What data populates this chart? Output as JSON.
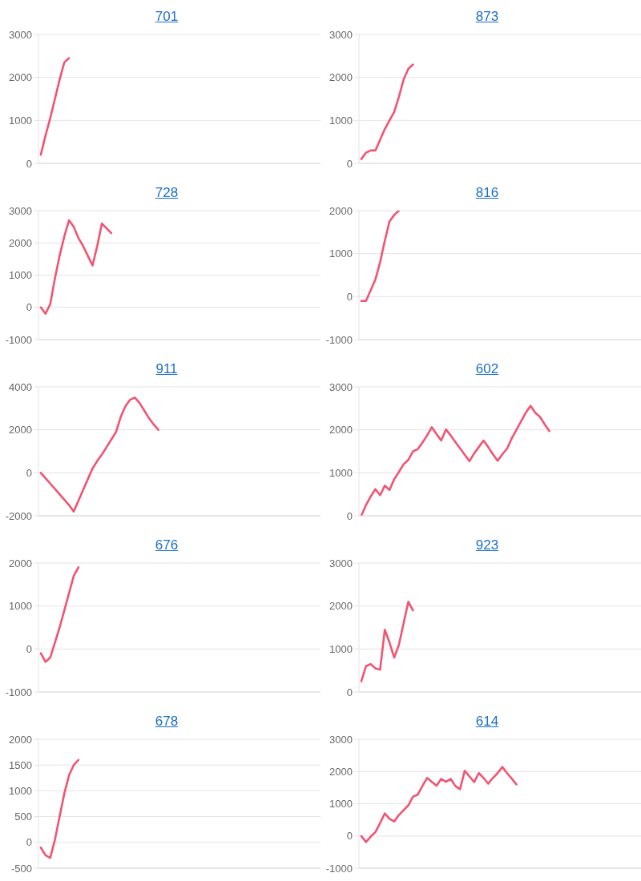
{
  "chart_data": [
    {
      "type": "line",
      "title": "701",
      "color": "#f25472",
      "ylim": [
        0,
        3000
      ],
      "yticks": [
        0,
        1000,
        2000,
        3000
      ],
      "grid": "y",
      "tick_labels": "y",
      "categories": [
        null,
        null,
        null,
        null,
        null,
        null,
        null,
        null,
        null,
        null,
        null,
        null,
        null,
        null,
        null,
        null,
        null,
        null,
        null,
        null,
        null,
        null,
        null,
        null,
        null,
        null,
        null,
        null,
        null,
        null,
        null,
        null,
        null,
        null,
        null,
        null,
        null,
        null,
        null,
        null,
        null,
        null,
        null,
        null,
        null,
        null,
        null,
        null,
        null,
        null,
        null,
        null,
        null,
        null,
        null,
        null,
        null,
        null,
        null,
        null
      ],
      "values": [
        200,
        650,
        1050,
        1500,
        1950,
        2350,
        2450,
        null,
        null,
        null,
        null,
        null,
        null,
        null,
        null,
        null,
        null,
        null,
        null,
        null,
        null,
        null,
        null,
        null,
        null,
        null,
        null,
        null,
        null,
        null,
        null,
        null,
        null,
        null,
        null,
        null,
        null,
        null,
        null,
        null,
        null,
        null,
        null,
        null,
        null,
        null,
        null,
        null,
        null,
        null,
        null,
        null,
        null,
        null,
        null,
        null,
        null,
        null,
        null,
        null
      ]
    },
    {
      "type": "line",
      "title": "873",
      "color": "#f25472",
      "ylim": [
        0,
        3000
      ],
      "yticks": [
        0,
        1000,
        2000,
        3000
      ],
      "grid": "y",
      "tick_labels": "y",
      "categories": [
        null,
        null,
        null,
        null,
        null,
        null,
        null,
        null,
        null,
        null,
        null,
        null,
        null,
        null,
        null,
        null,
        null,
        null,
        null,
        null,
        null,
        null,
        null,
        null,
        null,
        null,
        null,
        null,
        null,
        null,
        null,
        null,
        null,
        null,
        null,
        null,
        null,
        null,
        null,
        null,
        null,
        null,
        null,
        null,
        null,
        null,
        null,
        null,
        null,
        null,
        null,
        null,
        null,
        null,
        null,
        null,
        null,
        null,
        null,
        null
      ],
      "values": [
        100,
        250,
        300,
        300,
        550,
        800,
        1000,
        1200,
        1550,
        1950,
        2200,
        2300,
        null,
        null,
        null,
        null,
        null,
        null,
        null,
        null,
        null,
        null,
        null,
        null,
        null,
        null,
        null,
        null,
        null,
        null,
        null,
        null,
        null,
        null,
        null,
        null,
        null,
        null,
        null,
        null,
        null,
        null,
        null,
        null,
        null,
        null,
        null,
        null,
        null,
        null,
        null,
        null,
        null,
        null,
        null,
        null,
        null,
        null,
        null,
        null
      ]
    },
    {
      "type": "line",
      "title": "728",
      "color": "#f25472",
      "ylim": [
        -1000,
        3000
      ],
      "yticks": [
        -1000,
        0,
        1000,
        2000,
        3000
      ],
      "grid": "y",
      "tick_labels": "y",
      "categories": [
        null,
        null,
        null,
        null,
        null,
        null,
        null,
        null,
        null,
        null,
        null,
        null,
        null,
        null,
        null,
        null,
        null,
        null,
        null,
        null,
        null,
        null,
        null,
        null,
        null,
        null,
        null,
        null,
        null,
        null,
        null,
        null,
        null,
        null,
        null,
        null,
        null,
        null,
        null,
        null,
        null,
        null,
        null,
        null,
        null,
        null,
        null,
        null,
        null,
        null,
        null,
        null,
        null,
        null,
        null,
        null,
        null,
        null,
        null,
        null
      ],
      "values": [
        0,
        -200,
        100,
        900,
        1600,
        2200,
        2700,
        2500,
        2150,
        1900,
        1600,
        1300,
        1900,
        2600,
        2450,
        2300,
        null,
        null,
        null,
        null,
        null,
        null,
        null,
        null,
        null,
        null,
        null,
        null,
        null,
        null,
        null,
        null,
        null,
        null,
        null,
        null,
        null,
        null,
        null,
        null,
        null,
        null,
        null,
        null,
        null,
        null,
        null,
        null,
        null,
        null,
        null,
        null,
        null,
        null,
        null,
        null,
        null,
        null,
        null,
        null
      ]
    },
    {
      "type": "line",
      "title": "816",
      "color": "#f25472",
      "ylim": [
        -1000,
        2000
      ],
      "yticks": [
        -1000,
        0,
        1000,
        2000
      ],
      "grid": "y",
      "tick_labels": "y",
      "categories": [
        null,
        null,
        null,
        null,
        null,
        null,
        null,
        null,
        null,
        null,
        null,
        null,
        null,
        null,
        null,
        null,
        null,
        null,
        null,
        null,
        null,
        null,
        null,
        null,
        null,
        null,
        null,
        null,
        null,
        null,
        null,
        null,
        null,
        null,
        null,
        null,
        null,
        null,
        null,
        null,
        null,
        null,
        null,
        null,
        null,
        null,
        null,
        null,
        null,
        null,
        null,
        null,
        null,
        null,
        null,
        null,
        null,
        null,
        null,
        null
      ],
      "values": [
        -100,
        -100,
        150,
        400,
        800,
        1300,
        1750,
        1900,
        2000,
        null,
        null,
        null,
        null,
        null,
        null,
        null,
        null,
        null,
        null,
        null,
        null,
        null,
        null,
        null,
        null,
        null,
        null,
        null,
        null,
        null,
        null,
        null,
        null,
        null,
        null,
        null,
        null,
        null,
        null,
        null,
        null,
        null,
        null,
        null,
        null,
        null,
        null,
        null,
        null,
        null,
        null,
        null,
        null,
        null,
        null,
        null,
        null,
        null,
        null,
        null
      ]
    },
    {
      "type": "line",
      "title": "911",
      "color": "#f25472",
      "ylim": [
        -2000,
        4000
      ],
      "yticks": [
        -2000,
        0,
        2000,
        4000
      ],
      "grid": "y",
      "tick_labels": "y",
      "categories": [
        null,
        null,
        null,
        null,
        null,
        null,
        null,
        null,
        null,
        null,
        null,
        null,
        null,
        null,
        null,
        null,
        null,
        null,
        null,
        null,
        null,
        null,
        null,
        null,
        null,
        null,
        null,
        null,
        null,
        null,
        null,
        null,
        null,
        null,
        null,
        null,
        null,
        null,
        null,
        null,
        null,
        null,
        null,
        null,
        null,
        null,
        null,
        null,
        null,
        null,
        null,
        null,
        null,
        null,
        null,
        null,
        null,
        null,
        null,
        null
      ],
      "values": [
        0,
        -250,
        -500,
        -750,
        -1000,
        -1250,
        -1500,
        -1800,
        -1300,
        -800,
        -300,
        200,
        550,
        850,
        1200,
        1550,
        1900,
        2600,
        3100,
        3400,
        3500,
        3250,
        2900,
        2550,
        2250,
        2000,
        null,
        null,
        null,
        null,
        null,
        null,
        null,
        null,
        null,
        null,
        null,
        null,
        null,
        null,
        null,
        null,
        null,
        null,
        null,
        null,
        null,
        null,
        null,
        null,
        null,
        null,
        null,
        null,
        null,
        null,
        null,
        null,
        null,
        null
      ]
    },
    {
      "type": "line",
      "title": "602",
      "color": "#f25472",
      "ylim": [
        0,
        3000
      ],
      "yticks": [
        0,
        1000,
        2000,
        3000
      ],
      "grid": "y",
      "tick_labels": "y",
      "categories": [
        null,
        null,
        null,
        null,
        null,
        null,
        null,
        null,
        null,
        null,
        null,
        null,
        null,
        null,
        null,
        null,
        null,
        null,
        null,
        null,
        null,
        null,
        null,
        null,
        null,
        null,
        null,
        null,
        null,
        null,
        null,
        null,
        null,
        null,
        null,
        null,
        null,
        null,
        null,
        null,
        null,
        null,
        null,
        null,
        null,
        null,
        null,
        null,
        null,
        null,
        null,
        null,
        null,
        null,
        null,
        null,
        null,
        null,
        null,
        null
      ],
      "values": [
        0,
        250,
        450,
        620,
        480,
        700,
        600,
        850,
        1020,
        1200,
        1300,
        1500,
        1550,
        1700,
        1870,
        2060,
        1900,
        1750,
        2010,
        1870,
        1720,
        1570,
        1420,
        1270,
        1450,
        1600,
        1750,
        1600,
        1430,
        1280,
        1430,
        1560,
        1800,
        2000,
        2200,
        2400,
        2560,
        2400,
        2300,
        2130,
        1970,
        null,
        null,
        null,
        null,
        null,
        null,
        null,
        null,
        null,
        null,
        null,
        null,
        null,
        null,
        null,
        null,
        null,
        null,
        null
      ]
    },
    {
      "type": "line",
      "title": "676",
      "color": "#f25472",
      "ylim": [
        -1000,
        2000
      ],
      "yticks": [
        -1000,
        0,
        1000,
        2000
      ],
      "grid": "y",
      "tick_labels": "y",
      "categories": [
        null,
        null,
        null,
        null,
        null,
        null,
        null,
        null,
        null,
        null,
        null,
        null,
        null,
        null,
        null,
        null,
        null,
        null,
        null,
        null,
        null,
        null,
        null,
        null,
        null,
        null,
        null,
        null,
        null,
        null,
        null,
        null,
        null,
        null,
        null,
        null,
        null,
        null,
        null,
        null,
        null,
        null,
        null,
        null,
        null,
        null,
        null,
        null,
        null,
        null,
        null,
        null,
        null,
        null,
        null,
        null,
        null,
        null,
        null,
        null
      ],
      "values": [
        -100,
        -300,
        -200,
        150,
        500,
        900,
        1300,
        1700,
        1900,
        null,
        null,
        null,
        null,
        null,
        null,
        null,
        null,
        null,
        null,
        null,
        null,
        null,
        null,
        null,
        null,
        null,
        null,
        null,
        null,
        null,
        null,
        null,
        null,
        null,
        null,
        null,
        null,
        null,
        null,
        null,
        null,
        null,
        null,
        null,
        null,
        null,
        null,
        null,
        null,
        null,
        null,
        null,
        null,
        null,
        null,
        null,
        null,
        null,
        null,
        null
      ]
    },
    {
      "type": "line",
      "title": "923",
      "color": "#f25472",
      "ylim": [
        0,
        3000
      ],
      "yticks": [
        0,
        1000,
        2000,
        3000
      ],
      "grid": "y",
      "tick_labels": "y",
      "categories": [
        null,
        null,
        null,
        null,
        null,
        null,
        null,
        null,
        null,
        null,
        null,
        null,
        null,
        null,
        null,
        null,
        null,
        null,
        null,
        null,
        null,
        null,
        null,
        null,
        null,
        null,
        null,
        null,
        null,
        null,
        null,
        null,
        null,
        null,
        null,
        null,
        null,
        null,
        null,
        null,
        null,
        null,
        null,
        null,
        null,
        null,
        null,
        null,
        null,
        null,
        null,
        null,
        null,
        null,
        null,
        null,
        null,
        null,
        null,
        null
      ],
      "values": [
        250,
        600,
        650,
        550,
        520,
        1450,
        1150,
        800,
        1100,
        1600,
        2100,
        1900,
        null,
        null,
        null,
        null,
        null,
        null,
        null,
        null,
        null,
        null,
        null,
        null,
        null,
        null,
        null,
        null,
        null,
        null,
        null,
        null,
        null,
        null,
        null,
        null,
        null,
        null,
        null,
        null,
        null,
        null,
        null,
        null,
        null,
        null,
        null,
        null,
        null,
        null,
        null,
        null,
        null,
        null,
        null,
        null,
        null,
        null,
        null,
        null
      ]
    },
    {
      "type": "line",
      "title": "678",
      "color": "#f25472",
      "ylim": [
        -500,
        2000
      ],
      "yticks": [
        -500,
        0,
        500,
        1000,
        1500,
        2000
      ],
      "grid": "y",
      "tick_labels": "y",
      "categories": [
        null,
        null,
        null,
        null,
        null,
        null,
        null,
        null,
        null,
        null,
        null,
        null,
        null,
        null,
        null,
        null,
        null,
        null,
        null,
        null,
        null,
        null,
        null,
        null,
        null,
        null,
        null,
        null,
        null,
        null,
        null,
        null,
        null,
        null,
        null,
        null,
        null,
        null,
        null,
        null,
        null,
        null,
        null,
        null,
        null,
        null,
        null,
        null,
        null,
        null,
        null,
        null,
        null,
        null,
        null,
        null,
        null,
        null,
        null,
        null
      ],
      "values": [
        -100,
        -250,
        -300,
        50,
        500,
        950,
        1300,
        1500,
        1600,
        null,
        null,
        null,
        null,
        null,
        null,
        null,
        null,
        null,
        null,
        null,
        null,
        null,
        null,
        null,
        null,
        null,
        null,
        null,
        null,
        null,
        null,
        null,
        null,
        null,
        null,
        null,
        null,
        null,
        null,
        null,
        null,
        null,
        null,
        null,
        null,
        null,
        null,
        null,
        null,
        null,
        null,
        null,
        null,
        null,
        null,
        null,
        null,
        null,
        null,
        null
      ]
    },
    {
      "type": "line",
      "title": "614",
      "color": "#f25472",
      "ylim": [
        -1000,
        3000
      ],
      "yticks": [
        -1000,
        0,
        1000,
        2000,
        3000
      ],
      "grid": "y",
      "tick_labels": "y",
      "categories": [
        null,
        null,
        null,
        null,
        null,
        null,
        null,
        null,
        null,
        null,
        null,
        null,
        null,
        null,
        null,
        null,
        null,
        null,
        null,
        null,
        null,
        null,
        null,
        null,
        null,
        null,
        null,
        null,
        null,
        null,
        null,
        null,
        null,
        null,
        null,
        null,
        null,
        null,
        null,
        null,
        null,
        null,
        null,
        null,
        null,
        null,
        null,
        null,
        null,
        null,
        null,
        null,
        null,
        null,
        null,
        null,
        null,
        null,
        null,
        null
      ],
      "values": [
        0,
        -190,
        -20,
        120,
        400,
        700,
        530,
        450,
        650,
        800,
        950,
        1220,
        1280,
        1550,
        1800,
        1680,
        1560,
        1770,
        1680,
        1770,
        1550,
        1450,
        2020,
        1850,
        1670,
        1950,
        1800,
        1620,
        1800,
        1950,
        2140,
        1950,
        1780,
        1600,
        null,
        null,
        null,
        null,
        null,
        null,
        null,
        null,
        null,
        null,
        null,
        null,
        null,
        null,
        null,
        null,
        null,
        null,
        null,
        null,
        null,
        null,
        null,
        null,
        null,
        null
      ]
    }
  ]
}
